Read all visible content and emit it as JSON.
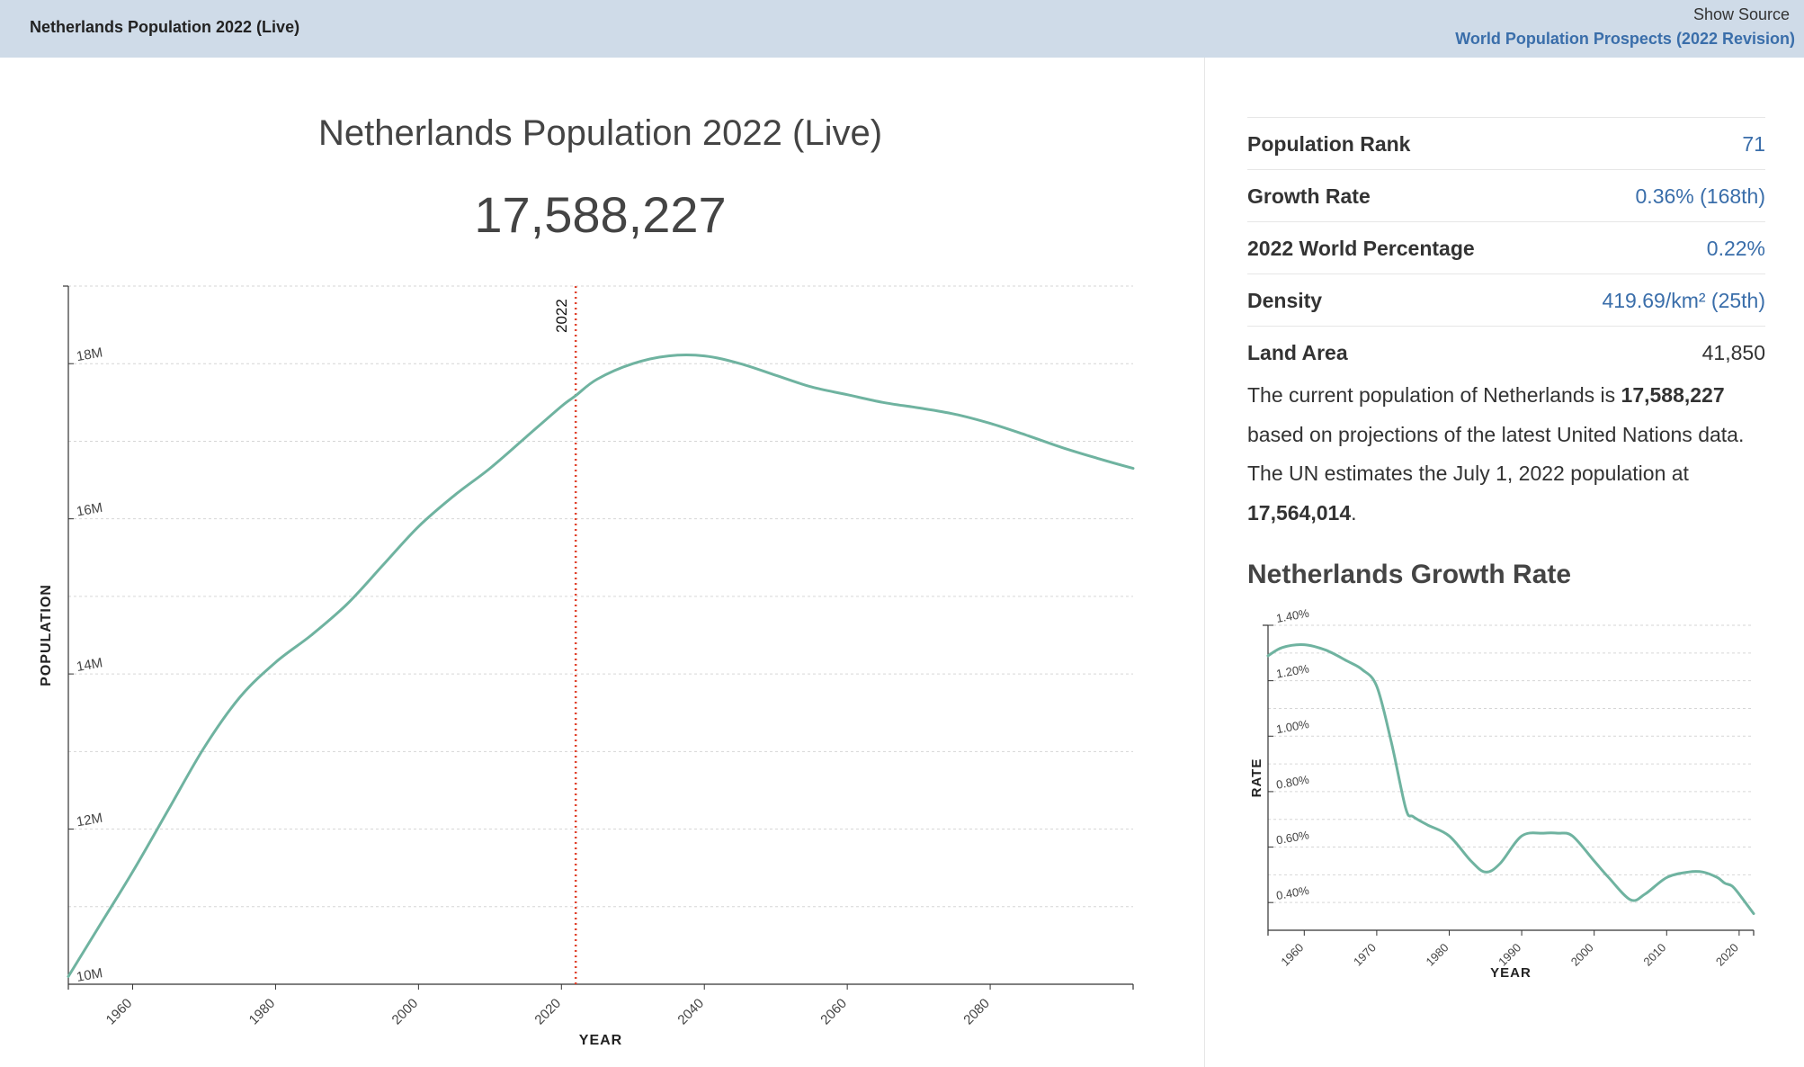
{
  "header": {
    "title": "Netherlands Population 2022 (Live)",
    "show_source": "Show Source",
    "source_link": "World Population Prospects (2022 Revision)"
  },
  "main": {
    "title": "Netherlands Population 2022 (Live)",
    "count": "17,588,227"
  },
  "stats": [
    {
      "label": "Population Rank",
      "value": "71"
    },
    {
      "label": "Growth Rate",
      "value": "0.36% (168th)"
    },
    {
      "label": "2022 World Percentage",
      "value": "0.22%"
    },
    {
      "label": "Density",
      "value": "419.69/km² (25th)"
    },
    {
      "label": "Land Area",
      "value": "41,850"
    }
  ],
  "description": {
    "part1": "The current population of Netherlands is ",
    "bold1": "17,588,227",
    "part2": " based on projections of the latest United Nations data. The UN estimates the July 1, 2022 population at ",
    "bold2": "17,564,014",
    "part3": "."
  },
  "growth_title": "Netherlands Growth Rate",
  "colors": {
    "line": "#6fb3a0",
    "marker": "#e0442e",
    "link": "#3a6eaa",
    "header_bg": "#cfdbe8"
  },
  "chart_data": [
    {
      "type": "line",
      "xlabel": "YEAR",
      "ylabel": "POPULATION",
      "marker_label": "2022",
      "marker_x": 2022,
      "xlim": [
        1951,
        2100
      ],
      "ylim": [
        10000000,
        19000000
      ],
      "x_ticks": [
        "1960",
        "1980",
        "2000",
        "2020",
        "2040",
        "2060",
        "2080"
      ],
      "y_ticks": [
        "10M",
        "12M",
        "14M",
        "16M",
        "18M"
      ],
      "grid": true,
      "x": [
        1951,
        1955,
        1960,
        1965,
        1970,
        1975,
        1980,
        1985,
        1990,
        1995,
        2000,
        2005,
        2010,
        2015,
        2020,
        2022,
        2025,
        2030,
        2035,
        2040,
        2045,
        2050,
        2055,
        2060,
        2065,
        2070,
        2075,
        2080,
        2085,
        2090,
        2095,
        2100
      ],
      "y": [
        10100000,
        10700000,
        11450000,
        12250000,
        13050000,
        13700000,
        14150000,
        14500000,
        14900000,
        15400000,
        15900000,
        16300000,
        16650000,
        17050000,
        17450000,
        17588227,
        17800000,
        18000000,
        18100000,
        18100000,
        18000000,
        17850000,
        17700000,
        17600000,
        17500000,
        17430000,
        17350000,
        17230000,
        17080000,
        16920000,
        16780000,
        16650000
      ]
    },
    {
      "type": "line",
      "xlabel": "YEAR",
      "ylabel": "RATE",
      "xlim": [
        1955,
        2022
      ],
      "ylim": [
        0.3,
        1.4
      ],
      "x_ticks": [
        "1960",
        "1970",
        "1980",
        "1990",
        "2000",
        "2010",
        "2020"
      ],
      "y_ticks": [
        "0.40%",
        "0.60%",
        "0.80%",
        "1.00%",
        "1.20%",
        "1.40%"
      ],
      "grid": true,
      "x": [
        1955,
        1957,
        1960,
        1963,
        1966,
        1968,
        1970,
        1972,
        1974,
        1975,
        1977,
        1980,
        1983,
        1985,
        1987,
        1990,
        1993,
        1995,
        1997,
        2000,
        2002,
        2005,
        2007,
        2010,
        2013,
        2015,
        2017,
        2018,
        2019,
        2020,
        2022
      ],
      "y": [
        1.29,
        1.32,
        1.33,
        1.31,
        1.27,
        1.24,
        1.18,
        0.98,
        0.74,
        0.71,
        0.68,
        0.64,
        0.55,
        0.51,
        0.54,
        0.64,
        0.65,
        0.65,
        0.64,
        0.55,
        0.49,
        0.41,
        0.43,
        0.49,
        0.51,
        0.51,
        0.49,
        0.47,
        0.46,
        0.43,
        0.36
      ]
    }
  ]
}
